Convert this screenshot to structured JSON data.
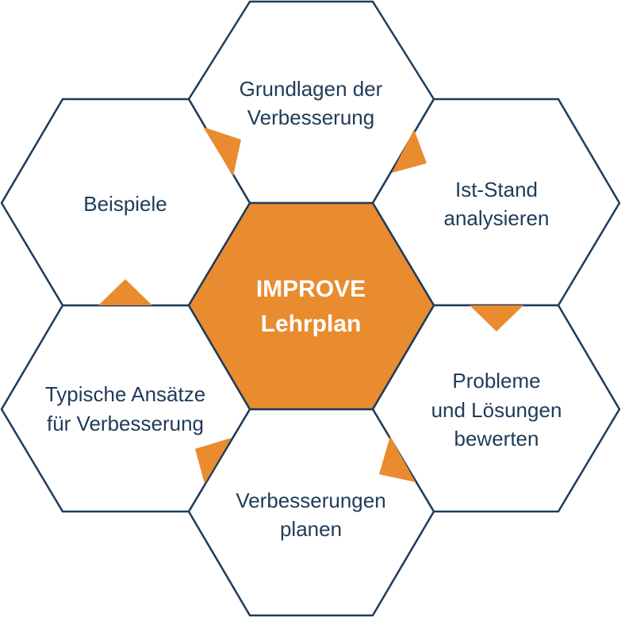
{
  "center": {
    "line1": "IMPROVE",
    "line2": "Lehrplan"
  },
  "steps": [
    {
      "line1": "Grundlagen der",
      "line2": "Verbesserung"
    },
    {
      "line1": "Ist-Stand",
      "line2": "analysieren"
    },
    {
      "line1": "Probleme",
      "line2": "und Lösungen",
      "line3": "bewerten"
    },
    {
      "line1": "Verbesserungen",
      "line2": "planen"
    },
    {
      "line1": "Typische Ansätze",
      "line2": "für Verbesserung"
    },
    {
      "line1": "Beispiele"
    }
  ],
  "colors": {
    "accent": "#e98b2f",
    "outline": "#1f3b5a",
    "text": "#1f3b5a",
    "background": "#ffffff"
  }
}
